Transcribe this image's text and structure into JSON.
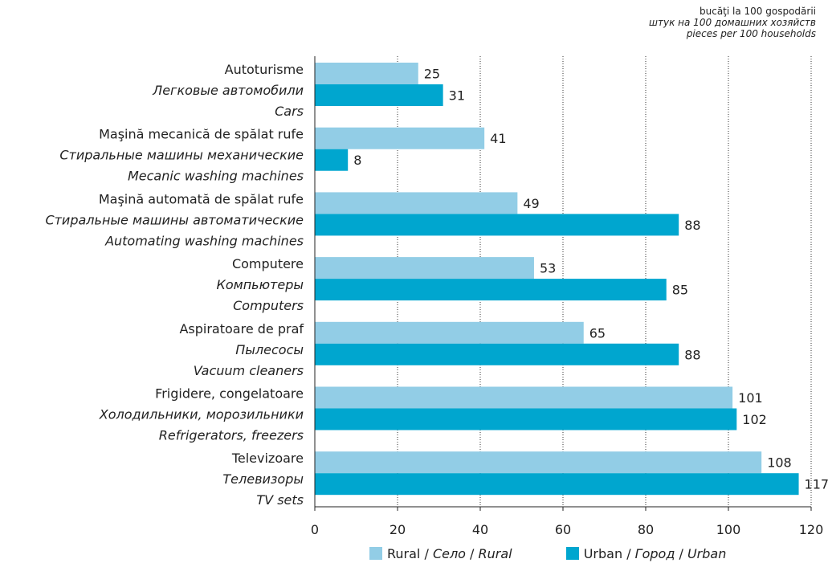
{
  "units": {
    "ro": "bucăţi la 100 gospodării",
    "ru": "штук на 100 домашних хозяйств",
    "en": "pieces per 100 households"
  },
  "legend": [
    {
      "ro": "Rural",
      "sep": " / ",
      "ru": "Село",
      "sep2": " / ",
      "en": "Rural",
      "color": "#92cde6"
    },
    {
      "ro": "Urban",
      "sep": " / ",
      "ru": "Город",
      "sep2": " / ",
      "en": "Urban",
      "color": "#00a6cf"
    }
  ],
  "chart_data": {
    "type": "bar",
    "orientation": "horizontal",
    "categories": [
      [
        "Autoturisme",
        "Легковые автомобили",
        "Cars"
      ],
      [
        "Maşină mecanică de spălat rufe",
        "Стиральные машины механические",
        "Mecanic washing machines"
      ],
      [
        "Maşină automată de spălat rufe",
        "Стиральные машины автоматические",
        "Automating washing machines"
      ],
      [
        "Computere",
        "Компьютеры",
        "Computers"
      ],
      [
        "Aspiratoare de praf",
        "Пылесосы",
        "Vacuum cleaners"
      ],
      [
        "Frigidere, congelatoare",
        "Холодильники, морозильники",
        "Refrigerators, freezers"
      ],
      [
        "Televizoare",
        "Телевизоры",
        "TV sets"
      ]
    ],
    "series": [
      {
        "name": "Rural / Село / Rural",
        "color": "#92cde6",
        "values": [
          25,
          41,
          49,
          53,
          65,
          101,
          108
        ]
      },
      {
        "name": "Urban / Город / Urban",
        "color": "#00a6cf",
        "values": [
          31,
          8,
          88,
          85,
          88,
          102,
          117
        ]
      }
    ],
    "xlim": [
      0,
      120
    ],
    "xticks": [
      0,
      20,
      40,
      60,
      80,
      100,
      120
    ],
    "grid": "vertical dotted",
    "legend_position": "bottom"
  }
}
